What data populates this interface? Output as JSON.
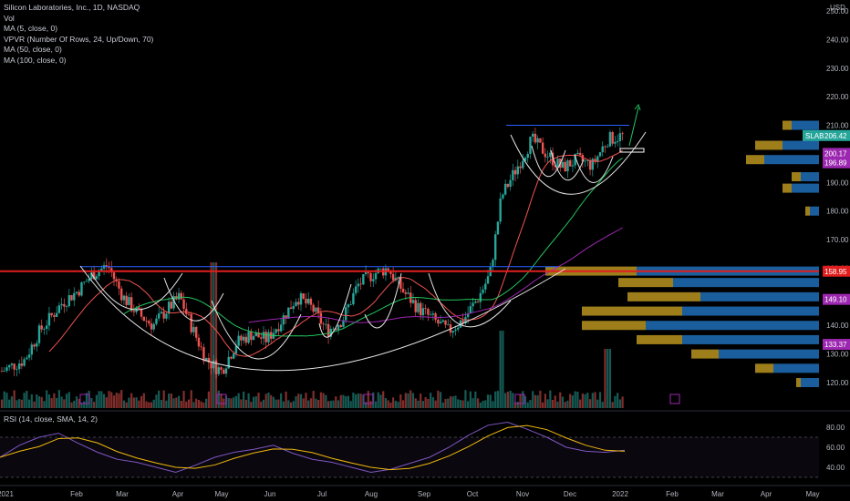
{
  "header": {
    "title": "Silicon Laboratories, Inc., 1D, NASDAQ",
    "currency": "USD",
    "indicators": [
      "Vol",
      "MA (5, close, 0)",
      "VPVR (Number Of Rows, 24, Up/Down, 70)",
      "MA (50, close, 0)",
      "MA (100, close, 0)"
    ],
    "rsi_title": "RSI (14, close, SMA, 14, 2)"
  },
  "colors": {
    "up": "#26a69a",
    "down": "#ef5350",
    "ma5": "#ef5350",
    "ma50": "#22c55e",
    "ma100": "#9c27b0",
    "resistance": "#e01e1e",
    "trendline": "#2962ff",
    "rsi": "#7e57c2",
    "rsi_ma": "#f0b90b",
    "vpvr_up": "#1e6fb8",
    "vpvr_down": "#b8941e"
  },
  "chart_data": {
    "type": "candlestick",
    "symbol": "SLAB",
    "interval": "1D",
    "price_axis": {
      "ticks": [
        120,
        130,
        140,
        150,
        160,
        170,
        180,
        190,
        200,
        210,
        220,
        230,
        240,
        250
      ],
      "range": [
        115,
        255
      ]
    },
    "time_axis": {
      "labels": [
        "2021",
        "Feb",
        "Mar",
        "Apr",
        "May",
        "Jun",
        "Jul",
        "Aug",
        "Sep",
        "Oct",
        "Nov",
        "Dec",
        "2022",
        "Feb",
        "Mar",
        "Apr",
        "May"
      ]
    },
    "price_tags": [
      {
        "label": "SLAB",
        "value": "206.42",
        "price": 206.42,
        "color": "#26a69a"
      },
      {
        "label": "",
        "value": "200.17",
        "price": 200.17,
        "color": "#9c27b0"
      },
      {
        "label": "",
        "value": "196.89",
        "price": 196.89,
        "color": "#9c27b0"
      },
      {
        "label": "",
        "value": "158.95",
        "price": 158.95,
        "color": "#e01e1e"
      },
      {
        "label": "",
        "value": "149.10",
        "price": 149.1,
        "color": "#9c27b0"
      },
      {
        "label": "",
        "value": "133.37",
        "price": 133.37,
        "color": "#9c27b0"
      }
    ],
    "resistance_level": 158.95,
    "close_path": [
      [
        0,
        124
      ],
      [
        0.03,
        128
      ],
      [
        0.05,
        138
      ],
      [
        0.08,
        148
      ],
      [
        0.1,
        152
      ],
      [
        0.12,
        158
      ],
      [
        0.14,
        161
      ],
      [
        0.16,
        150
      ],
      [
        0.18,
        144
      ],
      [
        0.2,
        140
      ],
      [
        0.22,
        146
      ],
      [
        0.235,
        150
      ],
      [
        0.25,
        140
      ],
      [
        0.27,
        128
      ],
      [
        0.29,
        124
      ],
      [
        0.31,
        134
      ],
      [
        0.33,
        137
      ],
      [
        0.35,
        135
      ],
      [
        0.37,
        142
      ],
      [
        0.39,
        150
      ],
      [
        0.41,
        146
      ],
      [
        0.43,
        138
      ],
      [
        0.45,
        142
      ],
      [
        0.47,
        154
      ],
      [
        0.49,
        158
      ],
      [
        0.51,
        160
      ],
      [
        0.53,
        152
      ],
      [
        0.55,
        146
      ],
      [
        0.57,
        142
      ],
      [
        0.59,
        138
      ],
      [
        0.61,
        142
      ],
      [
        0.63,
        150
      ],
      [
        0.645,
        158
      ],
      [
        0.66,
        185
      ],
      [
        0.68,
        195
      ],
      [
        0.7,
        205
      ],
      [
        0.72,
        200
      ],
      [
        0.74,
        195
      ],
      [
        0.76,
        198
      ],
      [
        0.78,
        196
      ],
      [
        0.8,
        205
      ],
      [
        0.82,
        206.42
      ]
    ],
    "rsi": {
      "levels": [
        80,
        60,
        40
      ],
      "upper_band": 70,
      "lower_band": 30,
      "values": [
        50,
        62,
        70,
        74,
        64,
        55,
        48,
        45,
        40,
        35,
        42,
        50,
        55,
        58,
        62,
        54,
        48,
        45,
        40,
        35,
        38,
        44,
        50,
        60,
        72,
        82,
        85,
        78,
        70,
        60,
        56,
        55,
        57
      ]
    },
    "earnings_markers": 6
  }
}
